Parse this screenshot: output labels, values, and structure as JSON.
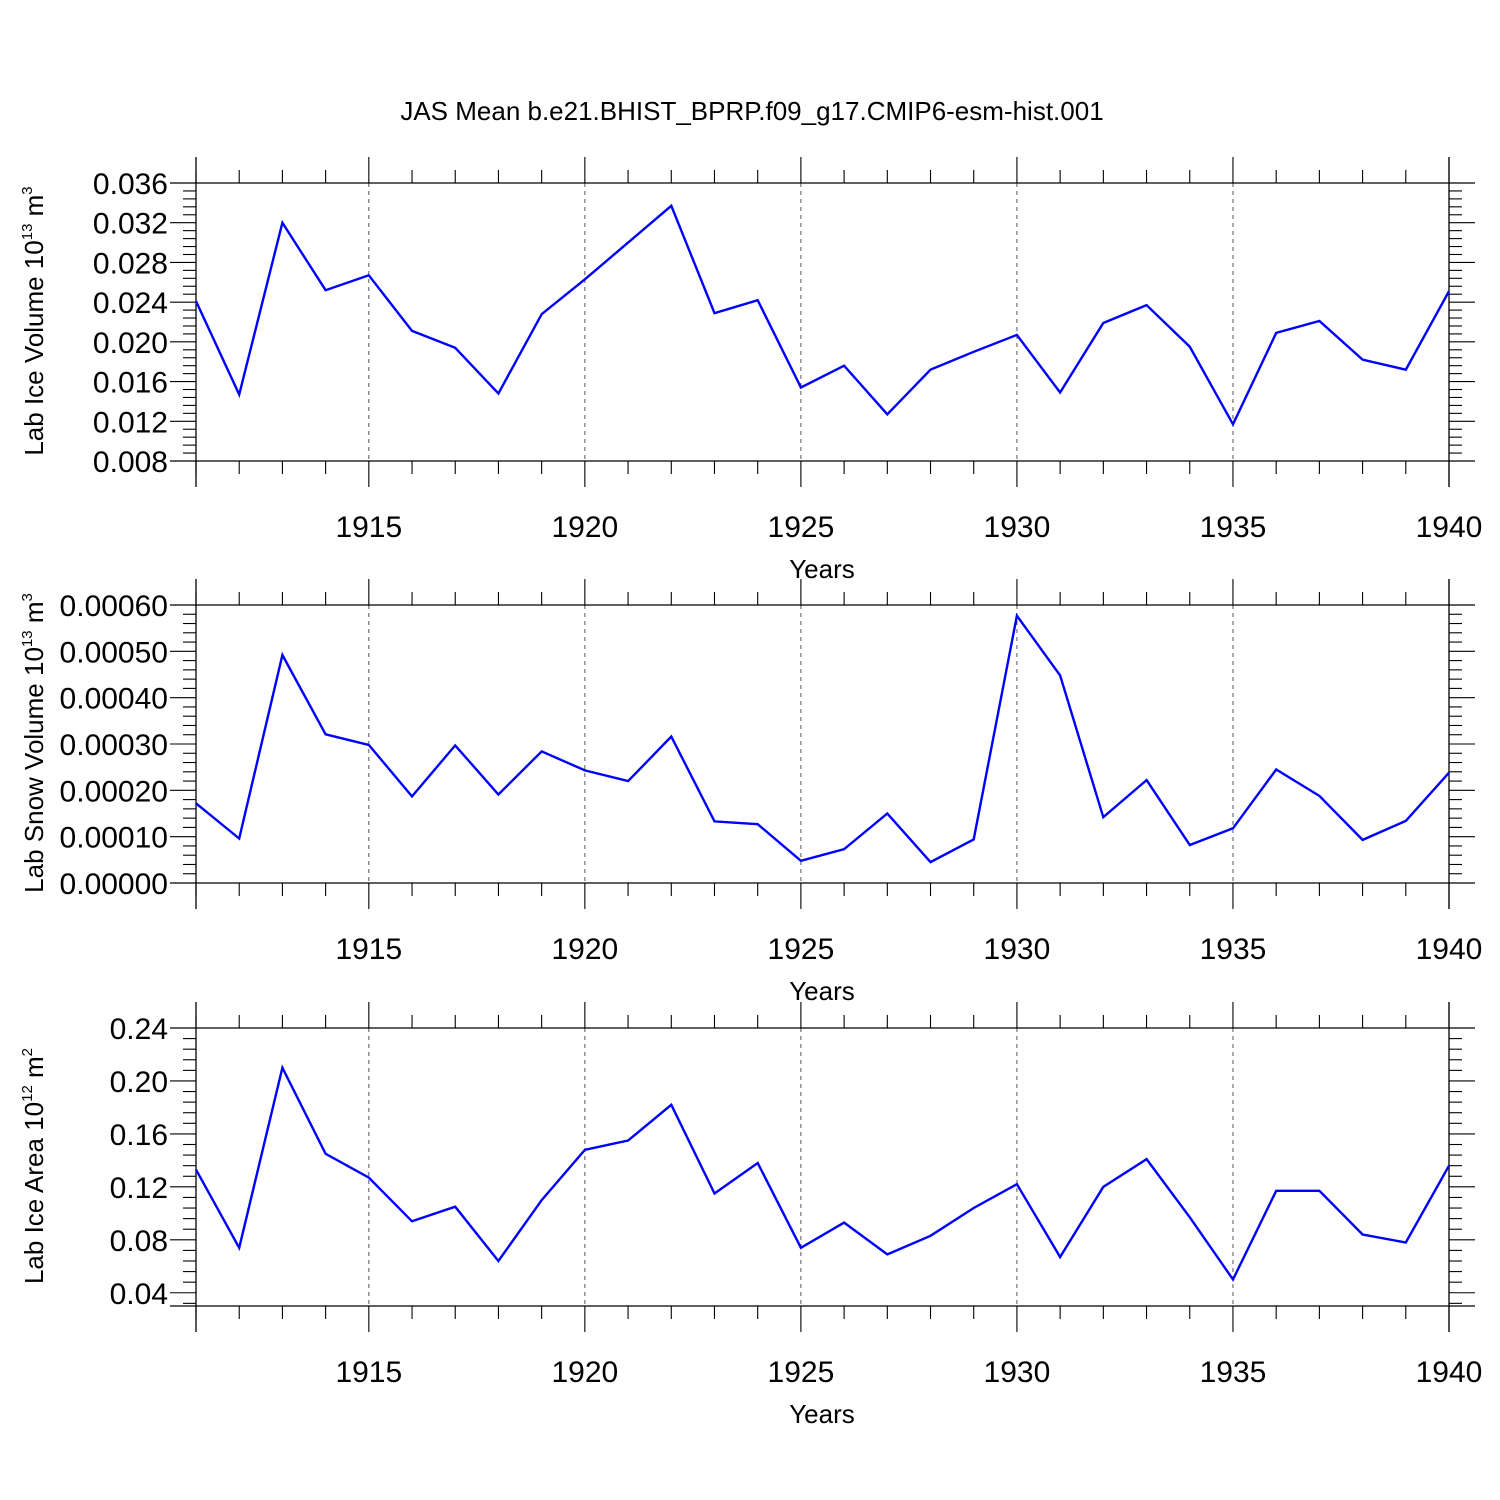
{
  "title": "JAS Mean b.e21.BHIST_BPRP.f09_g17.CMIP6-esm-hist.001",
  "colors": {
    "line": "#0000ff",
    "grid": "#555555",
    "frame": "#000000"
  },
  "chart_data": [
    {
      "type": "line",
      "ylabel": {
        "text": "Lab Ice Volume 10",
        "sup": "13",
        "unit": " m",
        "unit_sup": "3"
      },
      "xlabel": "Years",
      "xlim": [
        1911,
        1940
      ],
      "ylim": [
        0.008,
        0.036
      ],
      "xticks": [
        1915,
        1920,
        1925,
        1930,
        1935,
        1940
      ],
      "xtick_labels": [
        "1915",
        "1920",
        "1925",
        "1930",
        "1935",
        "1940"
      ],
      "yticks": [
        0.008,
        0.012,
        0.016,
        0.02,
        0.024,
        0.028,
        0.032,
        0.036
      ],
      "ytick_labels": [
        "0.008",
        "0.012",
        "0.016",
        "0.020",
        "0.024",
        "0.028",
        "0.032",
        "0.036"
      ],
      "grid": "vertical dashed at major x ticks",
      "x": [
        1911,
        1912,
        1913,
        1914,
        1915,
        1916,
        1917,
        1918,
        1919,
        1920,
        1921,
        1922,
        1923,
        1924,
        1925,
        1926,
        1927,
        1928,
        1929,
        1930,
        1931,
        1932,
        1933,
        1934,
        1935,
        1936,
        1937,
        1938,
        1939,
        1940
      ],
      "series": [
        {
          "values": [
            0.0241,
            0.0147,
            0.032,
            0.0252,
            0.0267,
            0.0211,
            0.0194,
            0.0148,
            0.0228,
            0.0263,
            0.03,
            0.0337,
            0.0229,
            0.0242,
            0.0154,
            0.0176,
            0.0127,
            0.0172,
            0.019,
            0.0207,
            0.0149,
            0.0219,
            0.0237,
            0.0195,
            0.0117,
            0.0209,
            0.0221,
            0.0182,
            0.0172,
            0.0251
          ]
        }
      ]
    },
    {
      "type": "line",
      "ylabel": {
        "text": "Lab Snow Volume 10",
        "sup": "13",
        "unit": " m",
        "unit_sup": "3"
      },
      "xlabel": "Years",
      "xlim": [
        1911,
        1940
      ],
      "ylim": [
        0.0,
        0.0006
      ],
      "xticks": [
        1915,
        1920,
        1925,
        1930,
        1935,
        1940
      ],
      "xtick_labels": [
        "1915",
        "1920",
        "1925",
        "1930",
        "1935",
        "1940"
      ],
      "yticks": [
        0.0,
        0.0001,
        0.0002,
        0.0003,
        0.0004,
        0.0005,
        0.0006
      ],
      "ytick_labels": [
        "0.00000",
        "0.00010",
        "0.00020",
        "0.00030",
        "0.00040",
        "0.00050",
        "0.00060"
      ],
      "grid": "vertical dashed at major x ticks",
      "x": [
        1911,
        1912,
        1913,
        1914,
        1915,
        1916,
        1917,
        1918,
        1919,
        1920,
        1921,
        1922,
        1923,
        1924,
        1925,
        1926,
        1927,
        1928,
        1929,
        1930,
        1931,
        1932,
        1933,
        1934,
        1935,
        1936,
        1937,
        1938,
        1939,
        1940
      ],
      "series": [
        {
          "values": [
            0.000172,
            9.6e-05,
            0.000492,
            0.000321,
            0.000298,
            0.000187,
            0.000297,
            0.000191,
            0.000284,
            0.000243,
            0.00022,
            0.000316,
            0.000133,
            0.000127,
            4.8e-05,
            7.3e-05,
            0.00015,
            4.5e-05,
            9.4e-05,
            0.000577,
            0.000448,
            0.000142,
            0.000222,
            8.2e-05,
            0.000118,
            0.000245,
            0.000188,
            9.3e-05,
            0.000134,
            0.000238
          ]
        }
      ]
    },
    {
      "type": "line",
      "ylabel": {
        "text": "Lab Ice Area 10",
        "sup": "12",
        "unit": " m",
        "unit_sup": "2"
      },
      "xlabel": "Years",
      "xlim": [
        1911,
        1940
      ],
      "ylim": [
        0.03,
        0.24
      ],
      "xticks": [
        1915,
        1920,
        1925,
        1930,
        1935,
        1940
      ],
      "xtick_labels": [
        "1915",
        "1920",
        "1925",
        "1930",
        "1935",
        "1940"
      ],
      "yticks": [
        0.04,
        0.08,
        0.12,
        0.16,
        0.2,
        0.24
      ],
      "ytick_labels": [
        "0.04",
        "0.08",
        "0.12",
        "0.16",
        "0.20",
        "0.24"
      ],
      "grid": "vertical dashed at major x ticks",
      "x": [
        1911,
        1912,
        1913,
        1914,
        1915,
        1916,
        1917,
        1918,
        1919,
        1920,
        1921,
        1922,
        1923,
        1924,
        1925,
        1926,
        1927,
        1928,
        1929,
        1930,
        1931,
        1932,
        1933,
        1934,
        1935,
        1936,
        1937,
        1938,
        1939,
        1940
      ],
      "series": [
        {
          "values": [
            0.133,
            0.074,
            0.21,
            0.145,
            0.127,
            0.094,
            0.105,
            0.064,
            0.11,
            0.148,
            0.155,
            0.182,
            0.115,
            0.138,
            0.074,
            0.093,
            0.069,
            0.083,
            0.104,
            0.122,
            0.067,
            0.12,
            0.141,
            0.097,
            0.05,
            0.117,
            0.117,
            0.084,
            0.078,
            0.136
          ]
        }
      ]
    }
  ]
}
